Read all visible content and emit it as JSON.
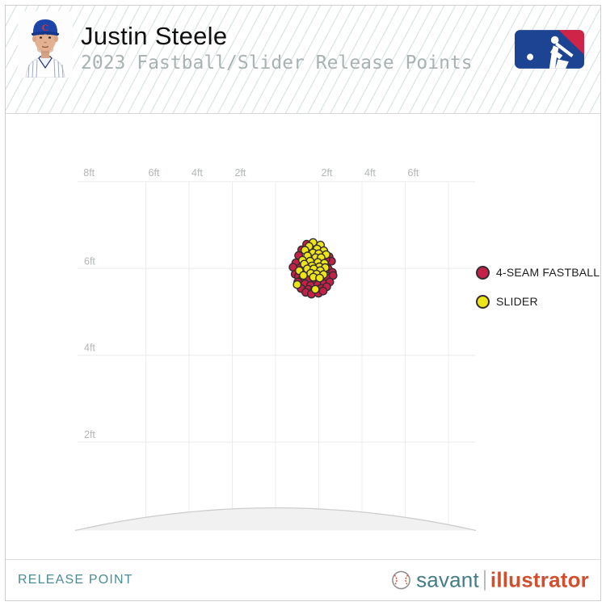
{
  "header": {
    "player_name": "Justin Steele",
    "subtitle": "2023 Fastball/Slider Release Points",
    "avatar_alt": "player-headshot-cubs",
    "mlb_logo_alt": "mlb-logo"
  },
  "chart_data": {
    "type": "scatter",
    "title": "2023 Fastball/Slider Release Points",
    "x_axis": {
      "unit": "ft",
      "range_ft": [
        -9.2,
        9.3
      ],
      "orientation": "top",
      "gridlines_ft": [
        -6,
        -4,
        -2,
        0,
        2,
        4,
        6,
        8
      ],
      "tick_labels": [
        {
          "label": "8ft",
          "ft": -9.0
        },
        {
          "label": "6ft",
          "ft": -6
        },
        {
          "label": "4ft",
          "ft": -4
        },
        {
          "label": "2ft",
          "ft": -2
        },
        {
          "label": "2ft",
          "ft": 2
        },
        {
          "label": "4ft",
          "ft": 4
        },
        {
          "label": "6ft",
          "ft": 6
        }
      ]
    },
    "y_axis": {
      "unit": "ft",
      "range_ft": [
        0,
        8
      ],
      "gridlines_ft": [
        2,
        4,
        6,
        8
      ],
      "tick_labels": [
        {
          "label": "6ft",
          "ft": 6
        },
        {
          "label": "4ft",
          "ft": 4
        },
        {
          "label": "2ft",
          "ft": 2
        }
      ]
    },
    "grid": true,
    "legend_position": "top-right",
    "marker": {
      "radius_px": 4.7,
      "stroke": "#362c30"
    },
    "mound": {
      "shown": true,
      "fill": "#f1f1f1",
      "stroke": "#cdcdcd"
    },
    "series": [
      {
        "name": "4-SEAM FASTBALL",
        "color": "#c32149",
        "points_ft": [
          [
            1.44,
            6.56
          ],
          [
            1.21,
            6.43
          ],
          [
            1.07,
            6.3
          ],
          [
            2.48,
            6.27
          ],
          [
            0.94,
            6.13
          ],
          [
            2.59,
            6.17
          ],
          [
            2.33,
            6.21
          ],
          [
            1.15,
            6.02
          ],
          [
            2.44,
            5.99
          ],
          [
            0.81,
            6.03
          ],
          [
            2.63,
            5.91
          ],
          [
            0.91,
            5.87
          ],
          [
            1.06,
            5.82
          ],
          [
            1.24,
            5.76
          ],
          [
            1.55,
            5.75
          ],
          [
            1.82,
            5.73
          ],
          [
            2.12,
            5.75
          ],
          [
            2.4,
            5.78
          ],
          [
            2.66,
            5.84
          ],
          [
            1.03,
            5.69
          ],
          [
            1.36,
            5.65
          ],
          [
            1.62,
            5.61
          ],
          [
            1.95,
            5.63
          ],
          [
            2.25,
            5.65
          ],
          [
            2.51,
            5.69
          ],
          [
            1.18,
            5.54
          ],
          [
            1.52,
            5.52
          ],
          [
            1.78,
            5.5
          ],
          [
            2.1,
            5.54
          ],
          [
            2.37,
            5.58
          ],
          [
            1.4,
            5.45
          ],
          [
            1.66,
            5.41
          ],
          [
            1.99,
            5.43
          ],
          [
            2.2,
            5.48
          ]
        ]
      },
      {
        "name": "SLIDER",
        "color": "#ece619",
        "points_ft": [
          [
            1.74,
            6.6
          ],
          [
            2.08,
            6.54
          ],
          [
            1.55,
            6.51
          ],
          [
            1.92,
            6.45
          ],
          [
            2.23,
            6.41
          ],
          [
            1.36,
            6.42
          ],
          [
            1.73,
            6.36
          ],
          [
            2.0,
            6.34
          ],
          [
            2.34,
            6.32
          ],
          [
            1.48,
            6.29
          ],
          [
            1.85,
            6.25
          ],
          [
            2.11,
            6.25
          ],
          [
            1.25,
            6.19
          ],
          [
            1.6,
            6.17
          ],
          [
            1.96,
            6.14
          ],
          [
            2.26,
            6.12
          ],
          [
            1.33,
            6.1
          ],
          [
            1.69,
            6.06
          ],
          [
            2.03,
            6.04
          ],
          [
            2.3,
            6.02
          ],
          [
            1.47,
            5.99
          ],
          [
            1.77,
            5.99
          ],
          [
            2.07,
            5.95
          ],
          [
            1.1,
            5.95
          ],
          [
            1.63,
            5.89
          ],
          [
            1.9,
            5.87
          ],
          [
            2.22,
            5.86
          ],
          [
            1.29,
            5.84
          ],
          [
            1.75,
            5.8
          ],
          [
            2.04,
            5.78
          ],
          [
            1.0,
            5.63
          ],
          [
            1.84,
            5.52
          ]
        ]
      }
    ]
  },
  "footer": {
    "release_point_label": "RELEASE POINT",
    "brand": {
      "savant": "savant",
      "illustrator": "illustrator"
    }
  },
  "colors": {
    "fastball": "#c32149",
    "slider": "#ece619",
    "marker_stroke": "#362c30",
    "teal": "#4b8c95",
    "brand_orange": "#d14f2c",
    "mlb_navy": "#1c4492",
    "mlb_red": "#cf2348",
    "gridline": "#ececec"
  }
}
